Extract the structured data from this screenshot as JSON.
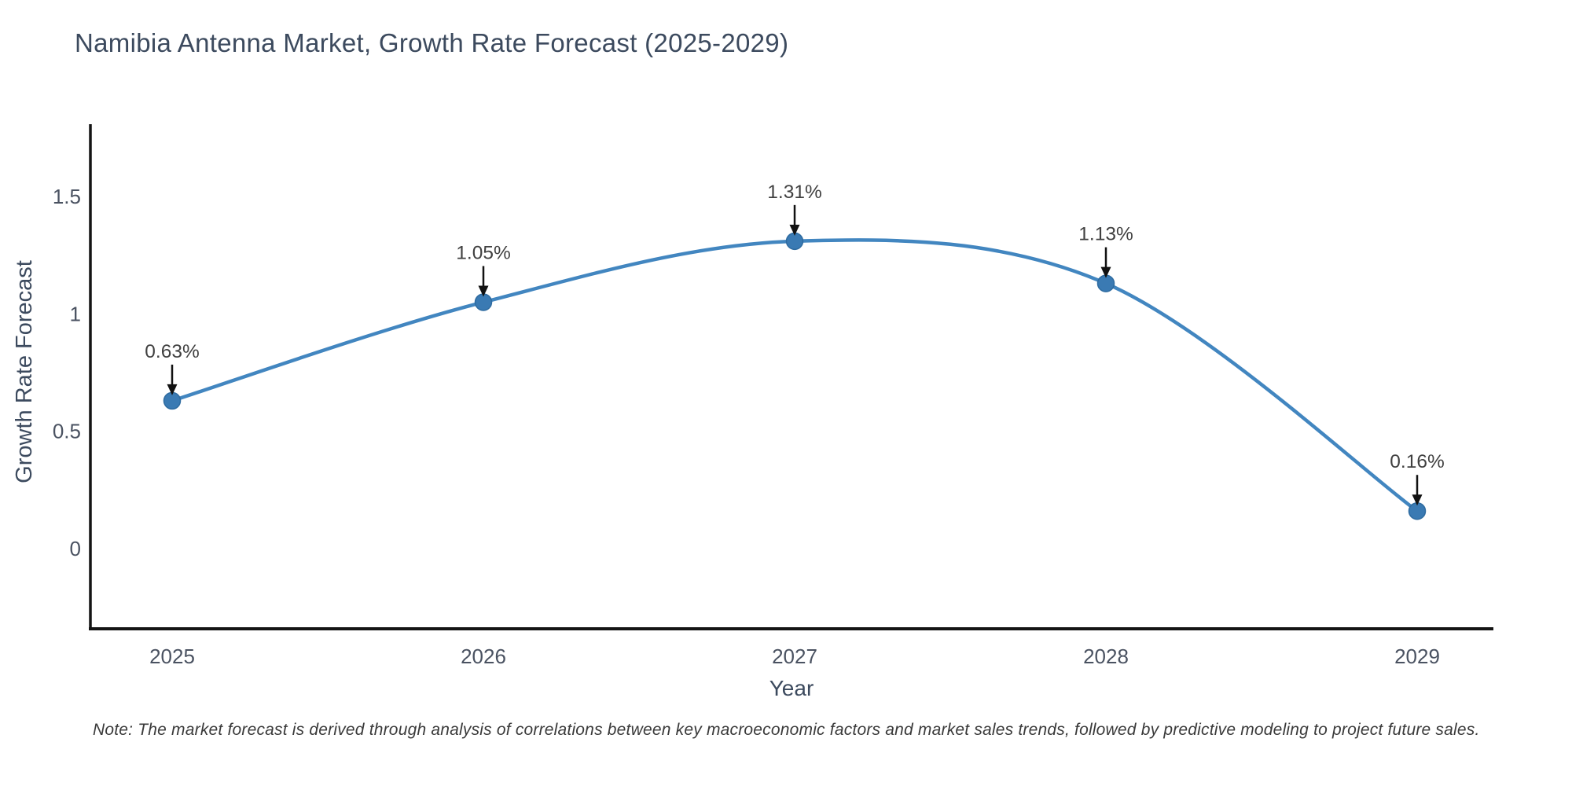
{
  "chart_data": {
    "type": "line",
    "line_shape": "spline",
    "title": "Namibia Antenna Market, Growth Rate Forecast (2025-2029)",
    "xlabel": "Year",
    "ylabel": "Growth Rate Forecast",
    "x": [
      2025,
      2026,
      2027,
      2028,
      2029
    ],
    "x_tick_labels": [
      "2025",
      "2026",
      "2027",
      "2028",
      "2029"
    ],
    "values": [
      0.63,
      1.05,
      1.31,
      1.13,
      0.16
    ],
    "point_labels": [
      "0.63%",
      "1.05%",
      "1.31%",
      "1.13%",
      "0.16%"
    ],
    "y_ticks": [
      0,
      0.5,
      1,
      1.5
    ],
    "y_tick_labels": [
      "0",
      "0.5",
      "1",
      "1.5"
    ],
    "ylim": [
      -0.34,
      1.81
    ],
    "grid": false,
    "legend": "none",
    "annotations": "value labels with black down arrows above each marker",
    "note": "Note: The market forecast is derived through analysis of correlations between key macroeconomic factors and market sales trends, followed by predictive modeling to project future sales.",
    "colors": {
      "line": "#4286c0",
      "marker": "#3a7ab3",
      "marker_edge": "#2e6ba0",
      "axis": "#141414",
      "tick_label": "#4a5261",
      "axis_title": "#3c4a5e",
      "title": "#3c4a5e",
      "annotation_text": "#404040",
      "annotation_arrow": "#111111",
      "note_text": "#3a3a3a",
      "background": "#ffffff"
    }
  }
}
